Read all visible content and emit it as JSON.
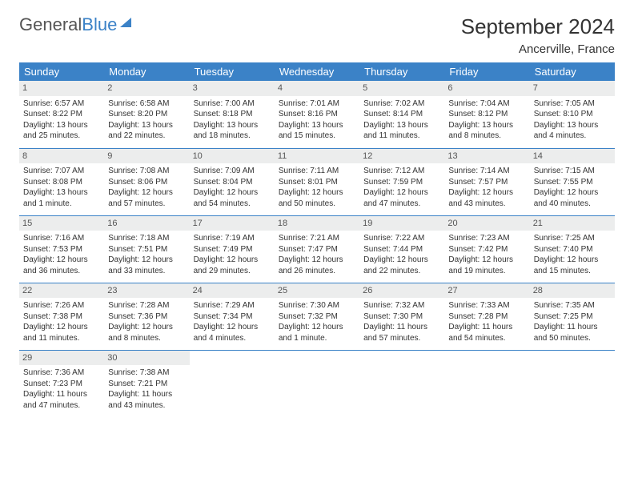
{
  "logo": {
    "text1": "General",
    "text2": "Blue"
  },
  "title": "September 2024",
  "location": "Ancerville, France",
  "colors": {
    "header_bg": "#3b82c7",
    "daynum_bg": "#eceded",
    "border": "#3b82c7"
  },
  "weekdays": [
    "Sunday",
    "Monday",
    "Tuesday",
    "Wednesday",
    "Thursday",
    "Friday",
    "Saturday"
  ],
  "weeks": [
    [
      {
        "n": "1",
        "sr": "6:57 AM",
        "ss": "8:22 PM",
        "dl": "13 hours and 25 minutes."
      },
      {
        "n": "2",
        "sr": "6:58 AM",
        "ss": "8:20 PM",
        "dl": "13 hours and 22 minutes."
      },
      {
        "n": "3",
        "sr": "7:00 AM",
        "ss": "8:18 PM",
        "dl": "13 hours and 18 minutes."
      },
      {
        "n": "4",
        "sr": "7:01 AM",
        "ss": "8:16 PM",
        "dl": "13 hours and 15 minutes."
      },
      {
        "n": "5",
        "sr": "7:02 AM",
        "ss": "8:14 PM",
        "dl": "13 hours and 11 minutes."
      },
      {
        "n": "6",
        "sr": "7:04 AM",
        "ss": "8:12 PM",
        "dl": "13 hours and 8 minutes."
      },
      {
        "n": "7",
        "sr": "7:05 AM",
        "ss": "8:10 PM",
        "dl": "13 hours and 4 minutes."
      }
    ],
    [
      {
        "n": "8",
        "sr": "7:07 AM",
        "ss": "8:08 PM",
        "dl": "13 hours and 1 minute."
      },
      {
        "n": "9",
        "sr": "7:08 AM",
        "ss": "8:06 PM",
        "dl": "12 hours and 57 minutes."
      },
      {
        "n": "10",
        "sr": "7:09 AM",
        "ss": "8:04 PM",
        "dl": "12 hours and 54 minutes."
      },
      {
        "n": "11",
        "sr": "7:11 AM",
        "ss": "8:01 PM",
        "dl": "12 hours and 50 minutes."
      },
      {
        "n": "12",
        "sr": "7:12 AM",
        "ss": "7:59 PM",
        "dl": "12 hours and 47 minutes."
      },
      {
        "n": "13",
        "sr": "7:14 AM",
        "ss": "7:57 PM",
        "dl": "12 hours and 43 minutes."
      },
      {
        "n": "14",
        "sr": "7:15 AM",
        "ss": "7:55 PM",
        "dl": "12 hours and 40 minutes."
      }
    ],
    [
      {
        "n": "15",
        "sr": "7:16 AM",
        "ss": "7:53 PM",
        "dl": "12 hours and 36 minutes."
      },
      {
        "n": "16",
        "sr": "7:18 AM",
        "ss": "7:51 PM",
        "dl": "12 hours and 33 minutes."
      },
      {
        "n": "17",
        "sr": "7:19 AM",
        "ss": "7:49 PM",
        "dl": "12 hours and 29 minutes."
      },
      {
        "n": "18",
        "sr": "7:21 AM",
        "ss": "7:47 PM",
        "dl": "12 hours and 26 minutes."
      },
      {
        "n": "19",
        "sr": "7:22 AM",
        "ss": "7:44 PM",
        "dl": "12 hours and 22 minutes."
      },
      {
        "n": "20",
        "sr": "7:23 AM",
        "ss": "7:42 PM",
        "dl": "12 hours and 19 minutes."
      },
      {
        "n": "21",
        "sr": "7:25 AM",
        "ss": "7:40 PM",
        "dl": "12 hours and 15 minutes."
      }
    ],
    [
      {
        "n": "22",
        "sr": "7:26 AM",
        "ss": "7:38 PM",
        "dl": "12 hours and 11 minutes."
      },
      {
        "n": "23",
        "sr": "7:28 AM",
        "ss": "7:36 PM",
        "dl": "12 hours and 8 minutes."
      },
      {
        "n": "24",
        "sr": "7:29 AM",
        "ss": "7:34 PM",
        "dl": "12 hours and 4 minutes."
      },
      {
        "n": "25",
        "sr": "7:30 AM",
        "ss": "7:32 PM",
        "dl": "12 hours and 1 minute."
      },
      {
        "n": "26",
        "sr": "7:32 AM",
        "ss": "7:30 PM",
        "dl": "11 hours and 57 minutes."
      },
      {
        "n": "27",
        "sr": "7:33 AM",
        "ss": "7:28 PM",
        "dl": "11 hours and 54 minutes."
      },
      {
        "n": "28",
        "sr": "7:35 AM",
        "ss": "7:25 PM",
        "dl": "11 hours and 50 minutes."
      }
    ],
    [
      {
        "n": "29",
        "sr": "7:36 AM",
        "ss": "7:23 PM",
        "dl": "11 hours and 47 minutes."
      },
      {
        "n": "30",
        "sr": "7:38 AM",
        "ss": "7:21 PM",
        "dl": "11 hours and 43 minutes."
      },
      null,
      null,
      null,
      null,
      null
    ]
  ],
  "labels": {
    "sunrise": "Sunrise: ",
    "sunset": "Sunset: ",
    "daylight": "Daylight: "
  }
}
